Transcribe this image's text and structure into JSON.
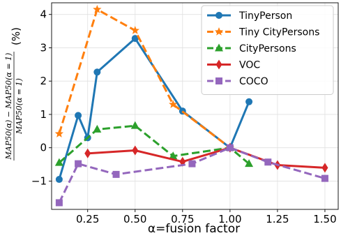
{
  "chart_data": {
    "type": "line",
    "xlabel": "α=fusion factor",
    "ylabel_numerator": "MAP50(α) − MAP50(α = 1)",
    "ylabel_denominator": "MAP50(α = 1)",
    "ylabel_unit": "(%)",
    "xlim": [
      0.06,
      1.57
    ],
    "ylim": [
      -1.85,
      4.35
    ],
    "xticks": [
      0.25,
      0.5,
      0.75,
      1.0,
      1.25,
      1.5
    ],
    "xtick_labels": [
      "0.25",
      "0.50",
      "0.75",
      "1.00",
      "1.25",
      "1.50"
    ],
    "yticks": [
      -1,
      0,
      1,
      2,
      3,
      4
    ],
    "ytick_labels": [
      "−1",
      "0",
      "1",
      "2",
      "3",
      "4"
    ],
    "grid": true,
    "legend_position": "top-right",
    "series": [
      {
        "name": "TinyPerson",
        "color": "#1f77b4",
        "linestyle": "solid",
        "marker": "circle",
        "x": [
          0.1,
          0.2,
          0.25,
          0.3,
          0.5,
          0.75,
          1.0,
          1.1
        ],
        "y": [
          -0.95,
          0.97,
          0.3,
          2.27,
          3.28,
          1.1,
          0.0,
          1.38
        ]
      },
      {
        "name": "Tiny CityPersons",
        "color": "#ff7f0e",
        "linestyle": "dashed",
        "marker": "star",
        "x": [
          0.1,
          0.3,
          0.5,
          0.7,
          1.0
        ],
        "y": [
          0.42,
          4.15,
          3.52,
          1.3,
          0.0
        ]
      },
      {
        "name": "CityPersons",
        "color": "#2ca02c",
        "linestyle": "dashed",
        "marker": "triangle",
        "x": [
          0.1,
          0.3,
          0.5,
          0.7,
          1.0,
          1.1
        ],
        "y": [
          -0.45,
          0.55,
          0.66,
          -0.25,
          0.0,
          -0.48
        ]
      },
      {
        "name": "VOC",
        "color": "#d62728",
        "linestyle": "solid",
        "marker": "diamond",
        "x": [
          0.25,
          0.5,
          0.75,
          1.0,
          1.25,
          1.5
        ],
        "y": [
          -0.17,
          -0.08,
          -0.42,
          0.0,
          -0.52,
          -0.6
        ]
      },
      {
        "name": "COCO",
        "color": "#9467bd",
        "linestyle": "dashed",
        "marker": "square",
        "x": [
          0.1,
          0.2,
          0.4,
          0.8,
          1.0,
          1.2,
          1.5
        ],
        "y": [
          -1.65,
          -0.48,
          -0.8,
          -0.48,
          0.0,
          -0.43,
          -0.92
        ]
      }
    ]
  }
}
